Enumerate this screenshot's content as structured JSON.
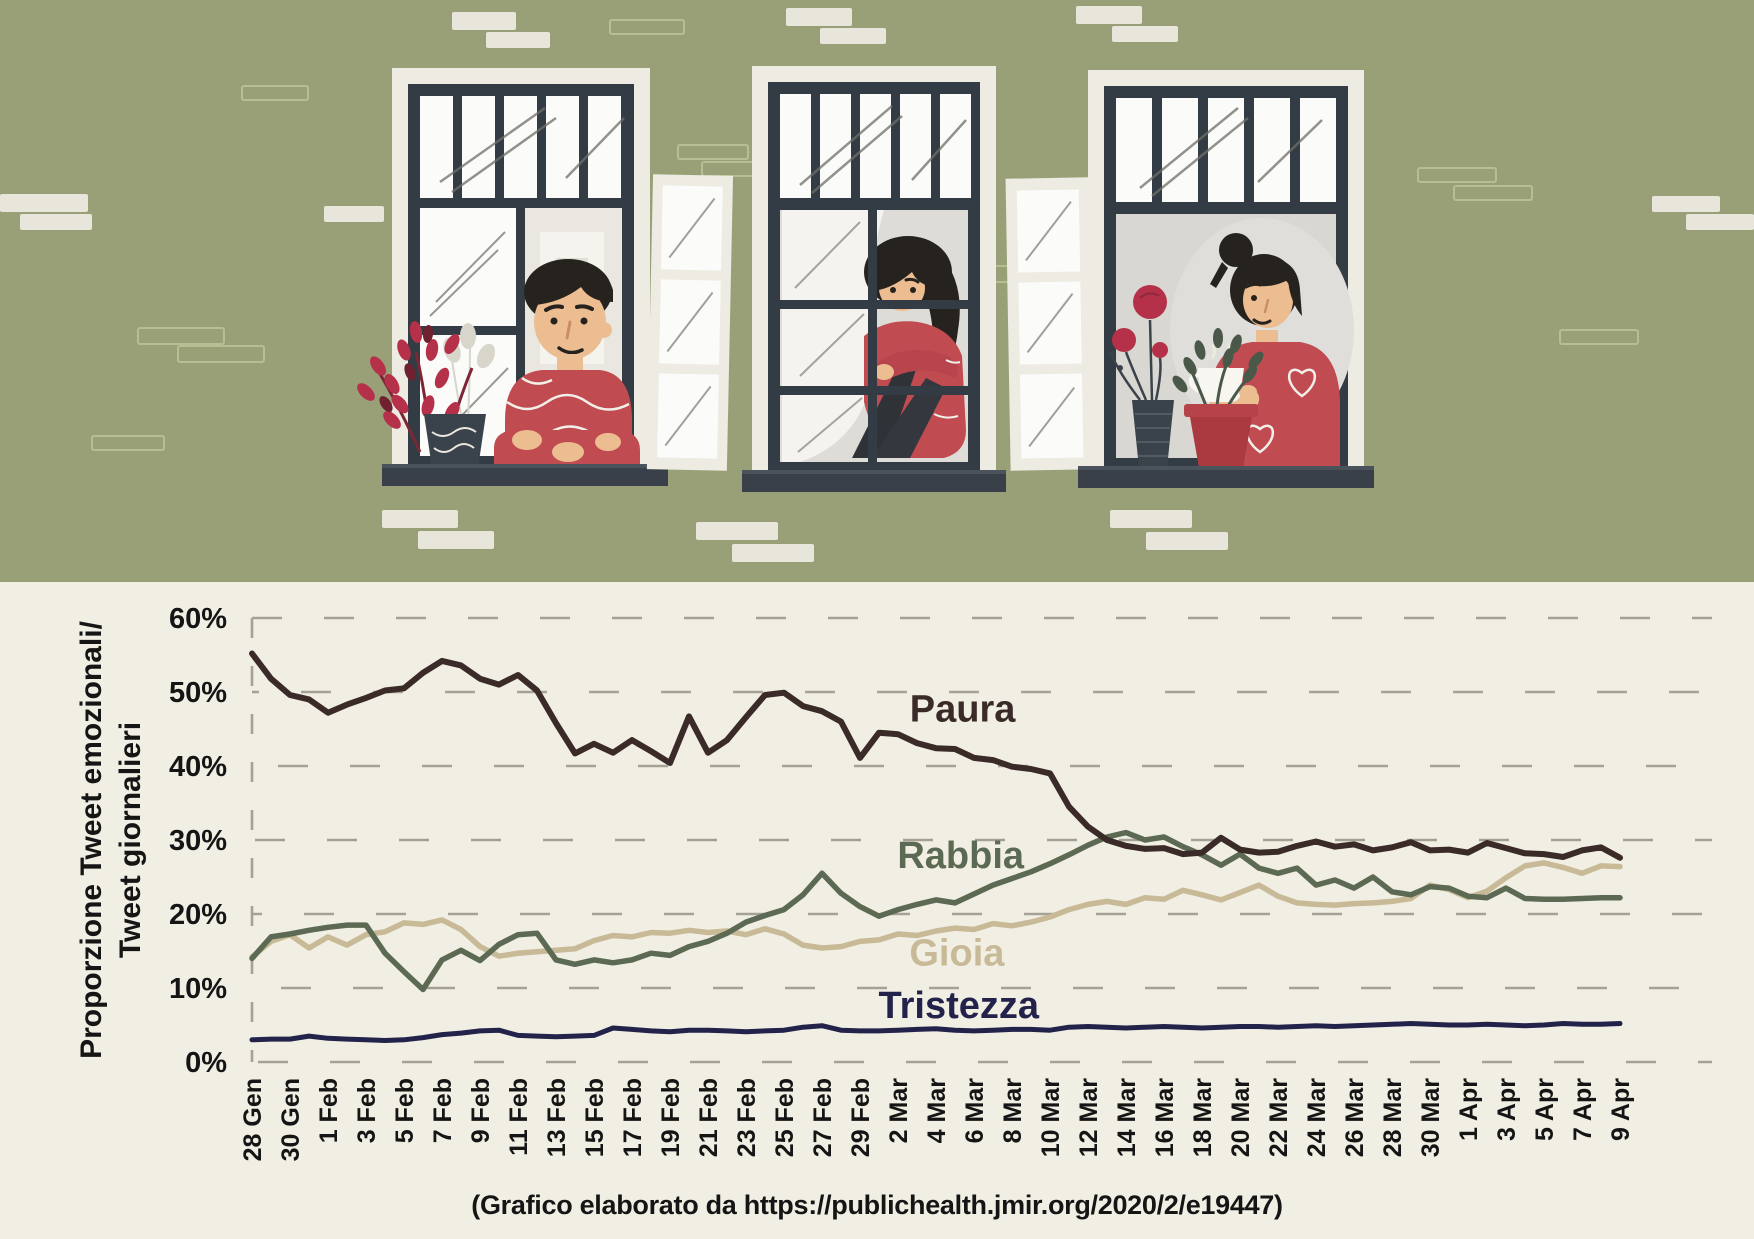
{
  "palette": {
    "wall_olive": "#99a077",
    "chart_background": "#f1eee3",
    "brick_white": "#e8e6db",
    "brick_outline": "#b7be94",
    "frame_dark": "#333c44",
    "frame_white": "#edebe2",
    "glass": "#fbfbf9",
    "skin": "#edbd92",
    "hair": "#26231f",
    "shirt_red": "#c04c52",
    "plant_red": "#b5314a",
    "plant_green": "#4a584a",
    "pot_red": "#ad3a40",
    "sill_dark": "#394049",
    "grid_grey": "#a5a195",
    "text_dark": "#151515"
  },
  "ylabel_line1": "Proporzione Tweet emozionali/",
  "ylabel_line2": "Tweet giornalieri",
  "chart_data": {
    "type": "line",
    "xlabel": "",
    "ylabel": "Proporzione Tweet emozionali/ Tweet giornalieri",
    "ylim": [
      0,
      60
    ],
    "y_ticks": [
      60,
      50,
      40,
      30,
      20,
      10,
      0
    ],
    "grid": "dashed horizontal, dashed left axis",
    "legend_position": "inline labels stacked mid-chart",
    "points_per_label": 2,
    "x_labels": [
      "28 Gen",
      "30 Gen",
      "1 Feb",
      "3 Feb",
      "5 Feb",
      "7 Feb",
      "9 Feb",
      "11 Feb",
      "13 Feb",
      "15 Feb",
      "17 Feb",
      "19 Feb",
      "21 Feb",
      "23 Feb",
      "25 Feb",
      "27 Feb",
      "29 Feb",
      "2 Mar",
      "4 Mar",
      "6 Mar",
      "8 Mar",
      "10 Mar",
      "12 Mar",
      "14 Mar",
      "16 Mar",
      "18 Mar",
      "20 Mar",
      "22 Mar",
      "24 Mar",
      "26 Mar",
      "28 Mar",
      "30 Mar",
      "1 Apr",
      "3 Apr",
      "5 Apr",
      "7 Apr",
      "9 Apr"
    ],
    "series": [
      {
        "name": "Paura",
        "color": "#3a2a28",
        "width": 6,
        "label_pos": {
          "day": 37.4,
          "value": 47.8
        },
        "values": [
          55.2,
          51.8,
          49.6,
          49.0,
          47.2,
          48.3,
          49.2,
          50.2,
          50.5,
          52.6,
          54.2,
          53.6,
          51.8,
          51.0,
          52.3,
          50.2,
          45.8,
          41.7,
          43.0,
          41.8,
          43.5,
          42.0,
          40.4,
          46.7,
          41.8,
          43.5,
          46.6,
          49.6,
          49.9,
          48.1,
          47.4,
          46.0,
          41.1,
          44.5,
          44.3,
          43.1,
          42.4,
          42.3,
          41.1,
          40.8,
          39.9,
          39.6,
          39.0,
          34.5,
          31.8,
          30.0,
          29.2,
          28.8,
          28.9,
          28.1,
          28.3,
          30.3,
          28.7,
          28.3,
          28.4,
          29.2,
          29.8,
          29.1,
          29.4,
          28.6,
          29.0,
          29.7,
          28.6,
          28.7,
          28.3,
          29.6,
          28.9,
          28.2,
          28.1,
          27.7,
          28.6,
          29.0,
          27.6
        ]
      },
      {
        "name": "Rabbia",
        "color": "#5d6a53",
        "width": 5.5,
        "label_pos": {
          "day": 37.3,
          "value": 28.0
        },
        "values": [
          14.0,
          16.9,
          17.3,
          17.8,
          18.2,
          18.5,
          18.5,
          14.7,
          12.2,
          9.8,
          13.8,
          15.1,
          13.7,
          15.9,
          17.2,
          17.4,
          13.8,
          13.2,
          13.8,
          13.4,
          13.8,
          14.7,
          14.4,
          15.6,
          16.3,
          17.4,
          18.9,
          19.8,
          20.6,
          22.6,
          25.5,
          22.8,
          21.0,
          19.7,
          20.6,
          21.3,
          21.9,
          21.5,
          22.7,
          23.9,
          24.8,
          25.7,
          26.8,
          28.0,
          29.3,
          30.4,
          31.0,
          30.0,
          30.4,
          29.1,
          28.0,
          26.6,
          28.1,
          26.2,
          25.5,
          26.2,
          23.9,
          24.6,
          23.5,
          25.0,
          23.0,
          22.6,
          23.7,
          23.5,
          22.4,
          22.2,
          23.5,
          22.1,
          22.0,
          22.0,
          22.1,
          22.2,
          22.2
        ]
      },
      {
        "name": "Gioia",
        "color": "#c8ba97",
        "width": 5.5,
        "label_pos": {
          "day": 37.1,
          "value": 14.8
        },
        "values": [
          14.2,
          16.3,
          17.2,
          15.4,
          16.9,
          15.8,
          17.2,
          17.6,
          18.8,
          18.6,
          19.2,
          17.9,
          15.6,
          14.3,
          14.7,
          14.9,
          15.1,
          15.3,
          16.4,
          17.1,
          16.9,
          17.5,
          17.4,
          17.8,
          17.5,
          17.7,
          17.2,
          18.0,
          17.3,
          15.8,
          15.4,
          15.6,
          16.3,
          16.5,
          17.3,
          17.1,
          17.7,
          18.1,
          17.9,
          18.7,
          18.4,
          18.9,
          19.6,
          20.6,
          21.3,
          21.7,
          21.3,
          22.2,
          22.0,
          23.2,
          22.6,
          21.9,
          22.9,
          23.9,
          22.4,
          21.5,
          21.3,
          21.2,
          21.4,
          21.5,
          21.7,
          22.1,
          23.9,
          23.3,
          22.2,
          23.1,
          24.9,
          26.5,
          26.9,
          26.3,
          25.5,
          26.5,
          26.4
        ]
      },
      {
        "name": "Tristezza",
        "color": "#23224a",
        "width": 5,
        "label_pos": {
          "day": 37.2,
          "value": 7.7
        },
        "values": [
          3.0,
          3.1,
          3.1,
          3.5,
          3.2,
          3.1,
          3.0,
          2.9,
          3.0,
          3.3,
          3.7,
          3.9,
          4.2,
          4.3,
          3.6,
          3.5,
          3.4,
          3.5,
          3.6,
          4.6,
          4.4,
          4.2,
          4.1,
          4.3,
          4.3,
          4.2,
          4.1,
          4.2,
          4.3,
          4.7,
          4.9,
          4.3,
          4.2,
          4.2,
          4.3,
          4.4,
          4.5,
          4.3,
          4.2,
          4.3,
          4.4,
          4.4,
          4.3,
          4.7,
          4.8,
          4.7,
          4.6,
          4.7,
          4.8,
          4.7,
          4.6,
          4.7,
          4.8,
          4.8,
          4.7,
          4.8,
          4.9,
          4.8,
          4.9,
          5.0,
          5.1,
          5.2,
          5.1,
          5.0,
          5.0,
          5.1,
          5.0,
          4.9,
          5.0,
          5.2,
          5.1,
          5.1,
          5.2
        ]
      }
    ],
    "caption": "(Grafico elaborato da https://publichealth.jmir.org/2020/2/e19447)"
  }
}
